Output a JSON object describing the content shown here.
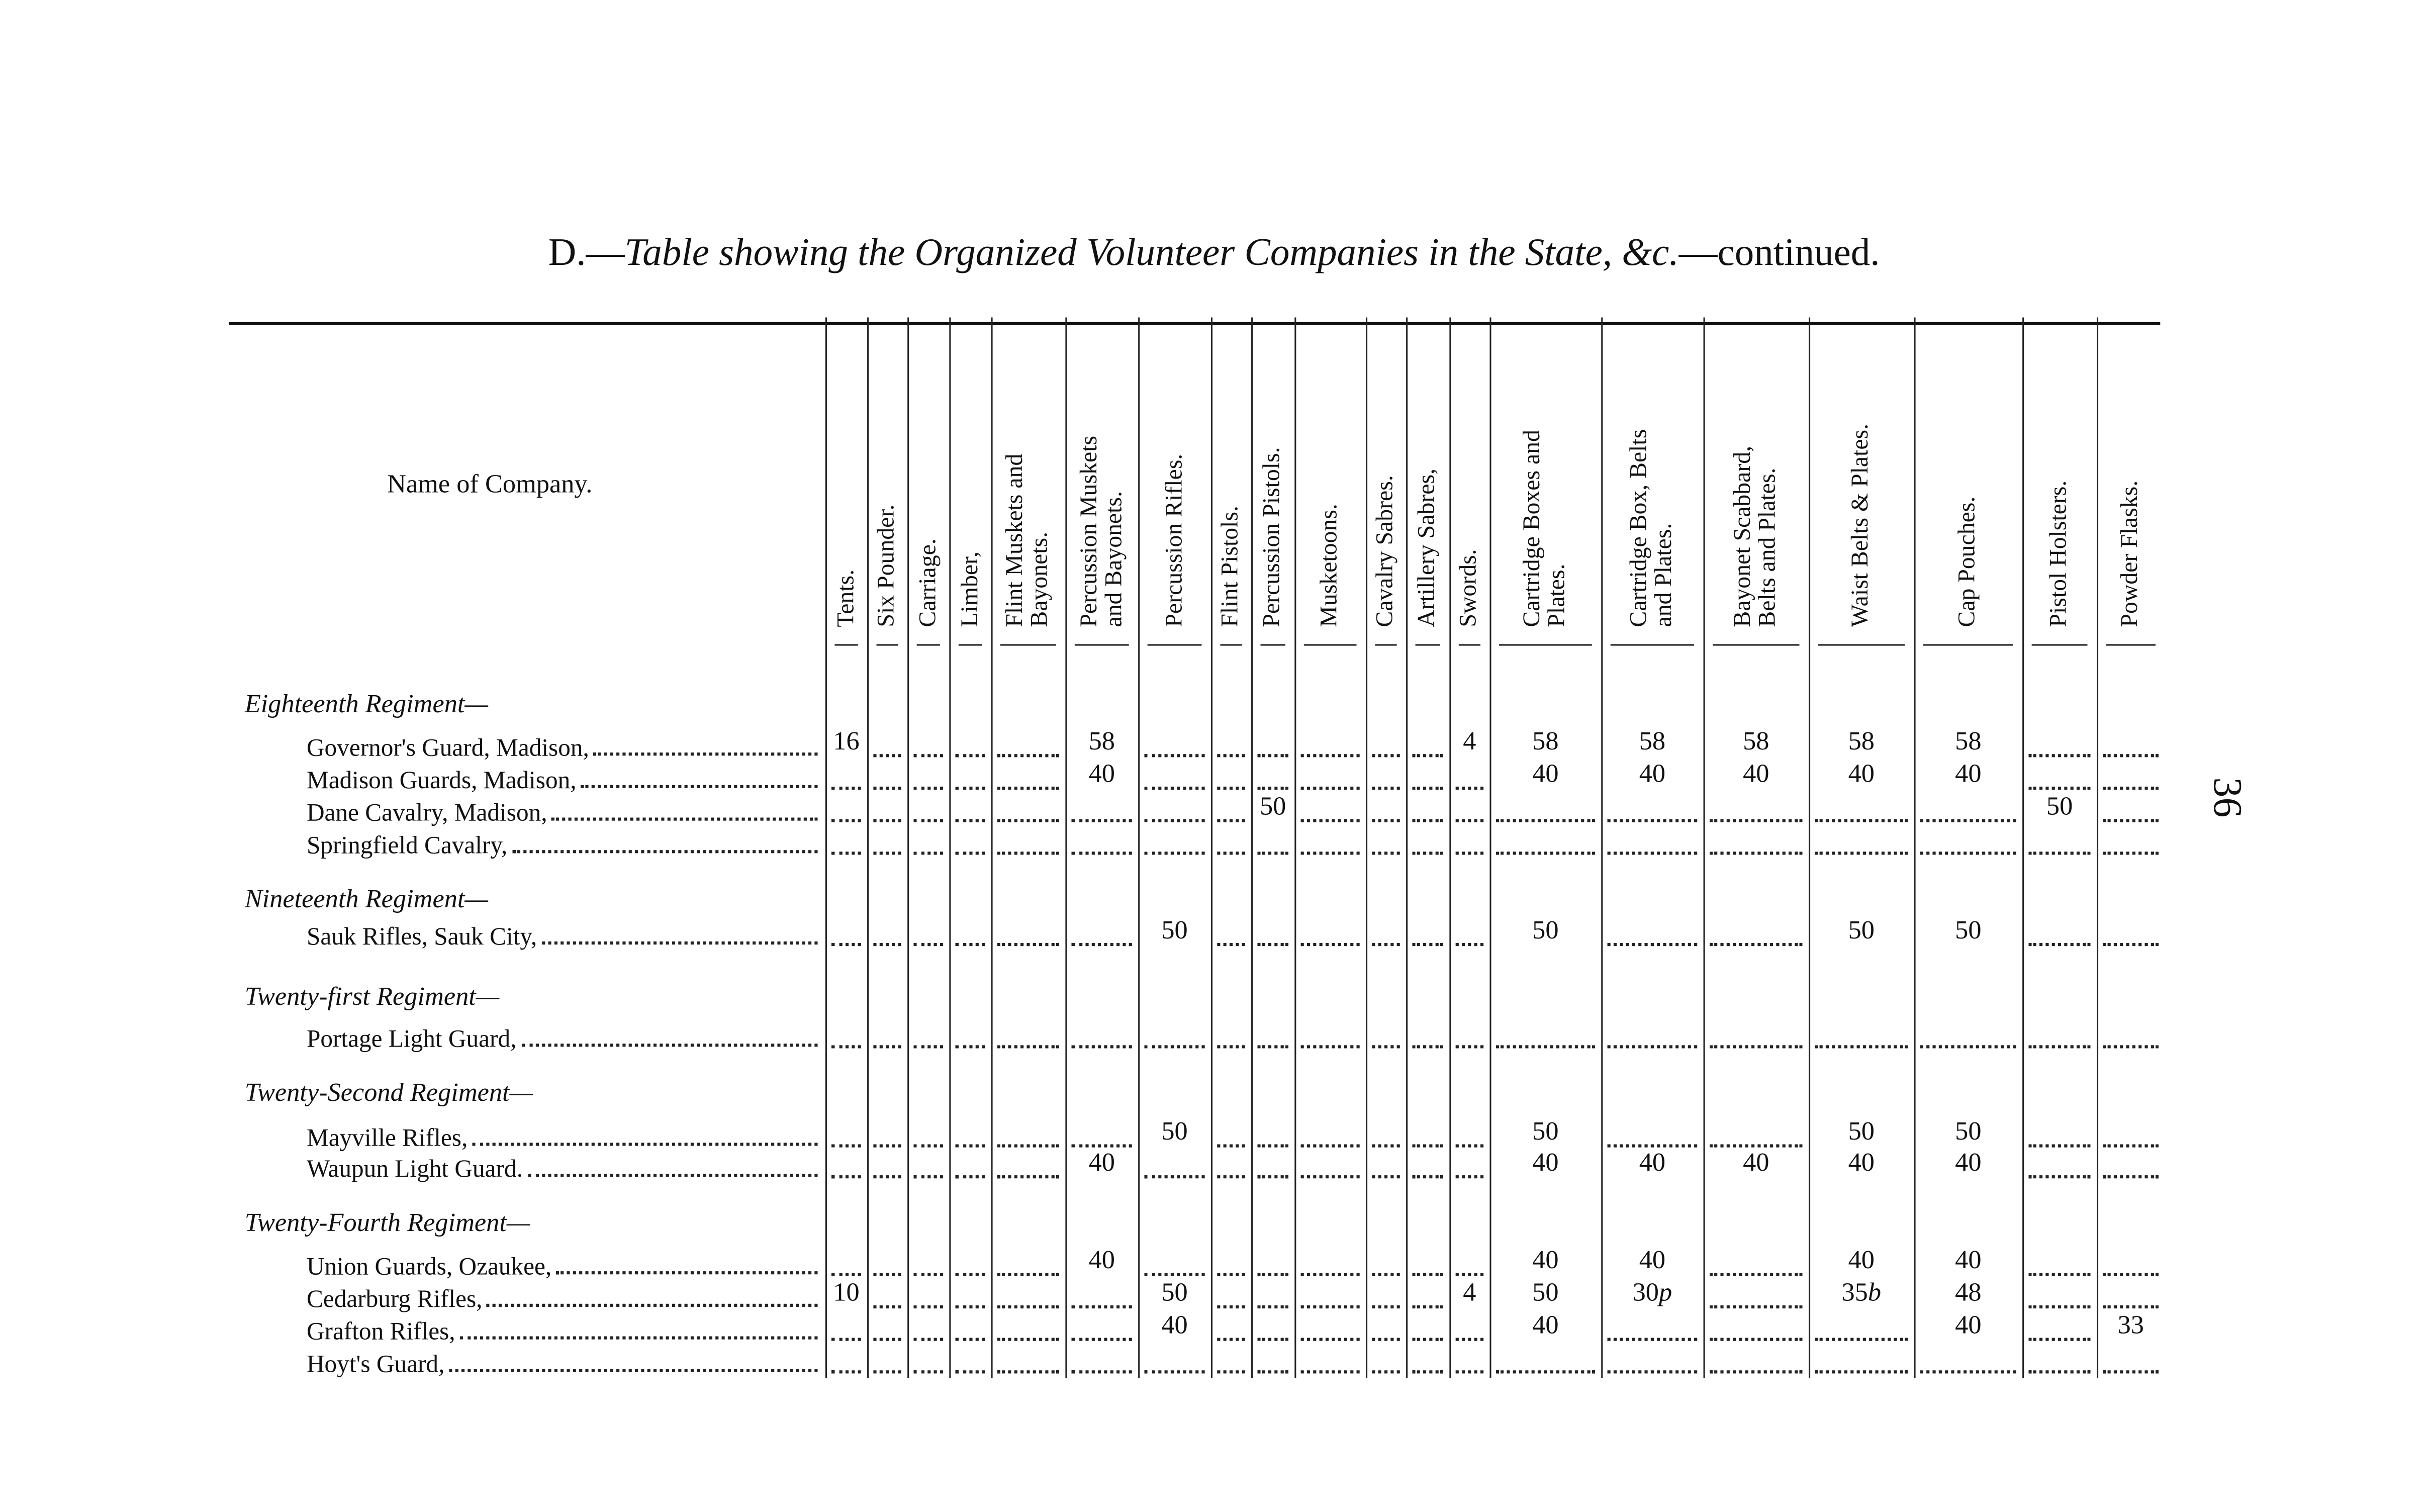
{
  "title": {
    "prefix": "D.—",
    "italic": "Table showing the Organized Volunteer Companies in the State, &c.",
    "suffix": "—continued."
  },
  "page_number": "36",
  "name_header": "Name of Company.",
  "columns": [
    "Tents.",
    "Six Pounder.",
    "Carriage.",
    "Limber,",
    "Flint Muskets and\nBayonets.",
    "Percussion Muskets\nand Bayonets.",
    "Percussion Rifles.",
    "Flint Pistols.",
    "Percussion Pistols.",
    "Musketoons.",
    "Cavalry Sabres.",
    "Artillery Sabres,",
    "Swords.",
    "Cartridge Boxes and\nPlates.",
    "Cartridge Box, Belts\nand Plates.",
    "Bayonet Scabbard,\nBelts and Plates.",
    "Waist Belts & Plates.",
    "Cap Pouches.",
    "Pistol Holsters.",
    "Powder Flasks."
  ],
  "rows": [
    {
      "group": "Eighteenth Regiment—"
    },
    {
      "name": "Governor's Guard, Madison,",
      "cells": [
        "16",
        "",
        "",
        "",
        "",
        "58",
        "",
        "",
        "",
        "",
        "",
        "",
        "4",
        "58",
        "58",
        "58",
        "58",
        "58",
        "",
        ""
      ]
    },
    {
      "name": "Madison Guards, Madison,",
      "cells": [
        "",
        "",
        "",
        "",
        "",
        "40",
        "",
        "",
        "",
        "",
        "",
        "",
        "",
        "40",
        "40",
        "40",
        "40",
        "40",
        "",
        ""
      ]
    },
    {
      "name": "Dane Cavalry, Madison,",
      "cells": [
        "",
        "",
        "",
        "",
        "",
        "",
        "",
        "",
        "50",
        "",
        "",
        "",
        "",
        "",
        "",
        "",
        "",
        "",
        "50",
        ""
      ]
    },
    {
      "name": "Springfield Cavalry,",
      "cells": [
        "",
        "",
        "",
        "",
        "",
        "",
        "",
        "",
        "",
        "",
        "",
        "",
        "",
        "",
        "",
        "",
        "",
        "",
        "",
        ""
      ]
    },
    {
      "group": "Nineteenth Regiment—"
    },
    {
      "name": "Sauk Rifles, Sauk City,",
      "cells": [
        "",
        "",
        "",
        "",
        "",
        "",
        "50",
        "",
        "",
        "",
        "",
        "",
        "",
        "50",
        "",
        "",
        "50",
        "50",
        "",
        ""
      ]
    },
    {
      "group": "Twenty-first Regiment—"
    },
    {
      "name": "Portage Light Guard,",
      "cells": [
        "",
        "",
        "",
        "",
        "",
        "",
        "",
        "",
        "",
        "",
        "",
        "",
        "",
        "",
        "",
        "",
        "",
        "",
        "",
        ""
      ]
    },
    {
      "group": "Twenty-Second Regiment—"
    },
    {
      "name": "Mayville Rifles,",
      "cells": [
        "",
        "",
        "",
        "",
        "",
        "",
        "50",
        "",
        "",
        "",
        "",
        "",
        "",
        "50",
        "",
        "",
        "50",
        "50",
        "",
        ""
      ]
    },
    {
      "name": "Waupun Light Guard.",
      "cells": [
        "",
        "",
        "",
        "",
        "",
        "40",
        "",
        "",
        "",
        "",
        "",
        "",
        "",
        "40",
        "40",
        "40",
        "40",
        "40",
        "",
        ""
      ]
    },
    {
      "group": "Twenty-Fourth Regiment—"
    },
    {
      "name": "Union Guards, Ozaukee,",
      "cells": [
        "",
        "",
        "",
        "",
        "",
        "40",
        "",
        "",
        "",
        "",
        "",
        "",
        "",
        "40",
        "40",
        "",
        "40",
        "40",
        "",
        ""
      ]
    },
    {
      "name": "Cedarburg Rifles,",
      "cells": [
        "10",
        "",
        "",
        "",
        "",
        "",
        "50",
        "",
        "",
        "",
        "",
        "",
        "4",
        "50",
        "30p",
        "",
        "35b",
        "48",
        "",
        ""
      ]
    },
    {
      "name": "Grafton Rifles,",
      "cells": [
        "",
        "",
        "",
        "",
        "",
        "",
        "40",
        "",
        "",
        "",
        "",
        "",
        "",
        "40",
        "",
        "",
        "",
        "40",
        "",
        "33"
      ]
    },
    {
      "name": "Hoyt's Guard,",
      "cells": [
        "",
        "",
        "",
        "",
        "",
        "",
        "",
        "",
        "",
        "",
        "",
        "",
        "",
        "",
        "",
        "",
        "",
        "",
        "",
        ""
      ]
    }
  ]
}
